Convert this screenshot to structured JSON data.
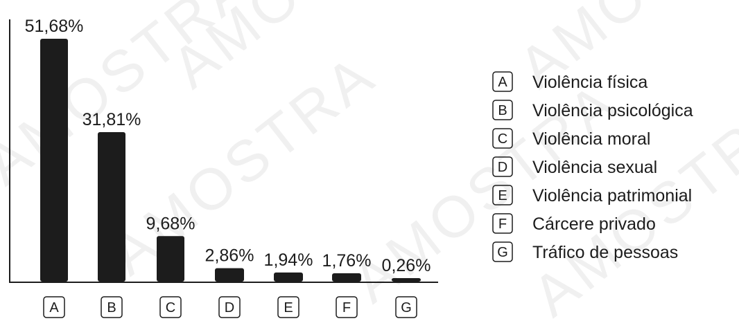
{
  "watermark_text": "AMOSTRA",
  "chart_data": {
    "type": "bar",
    "categories": [
      "A",
      "B",
      "C",
      "D",
      "E",
      "F",
      "G"
    ],
    "values": [
      51.68,
      31.81,
      9.68,
      2.86,
      1.94,
      1.76,
      0.26
    ],
    "value_labels": [
      "51,68%",
      "31,81%",
      "9,68%",
      "2,86%",
      "1,94%",
      "1,76%",
      "0,26%"
    ],
    "ylim": [
      0,
      51.68
    ],
    "title": "",
    "xlabel": "",
    "ylabel": "",
    "grid": false,
    "legend_position": "right",
    "legend": [
      {
        "key": "A",
        "label": "Violência física"
      },
      {
        "key": "B",
        "label": "Violência psicológica"
      },
      {
        "key": "C",
        "label": "Violência moral"
      },
      {
        "key": "D",
        "label": "Violência sexual"
      },
      {
        "key": "E",
        "label": "Violência patrimonial"
      },
      {
        "key": "F",
        "label": "Cárcere privado"
      },
      {
        "key": "G",
        "label": "Tráfico de pessoas"
      }
    ],
    "bar_color": "#1c1c1c"
  }
}
